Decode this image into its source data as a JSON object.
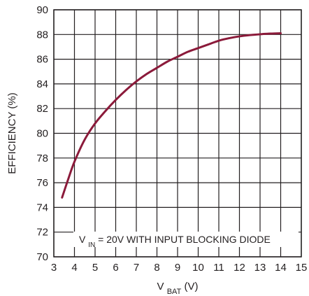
{
  "chart_data": {
    "type": "line",
    "title": "",
    "xlabel": {
      "main": "V",
      "sub": "BAT",
      "unit": " (V)"
    },
    "ylabel": "EFFICIENCY (%)",
    "xlim": [
      3,
      15
    ],
    "ylim": [
      70,
      90
    ],
    "x_ticks": [
      3,
      4,
      5,
      6,
      7,
      8,
      9,
      10,
      11,
      12,
      13,
      14,
      15
    ],
    "y_ticks": [
      70,
      72,
      74,
      76,
      78,
      80,
      82,
      84,
      86,
      88,
      90
    ],
    "grid": true,
    "annotation": {
      "main": "V",
      "sub": "IN",
      "rest": " = 20V WITH INPUT BLOCKING DIODE"
    },
    "line_color": "#8b1a3a",
    "series": [
      {
        "x": [
          3.4,
          3.7,
          4,
          4.5,
          5,
          5.5,
          6,
          6.5,
          7,
          7.5,
          8,
          8.5,
          9,
          9.5,
          10,
          10.5,
          11,
          11.5,
          12,
          12.5,
          13,
          13.5,
          14
        ],
        "values": [
          74.8,
          76.3,
          77.7,
          79.5,
          80.8,
          81.8,
          82.7,
          83.5,
          84.2,
          84.8,
          85.3,
          85.8,
          86.2,
          86.6,
          86.9,
          87.2,
          87.5,
          87.7,
          87.85,
          87.95,
          88.02,
          88.07,
          88.1
        ]
      }
    ]
  }
}
